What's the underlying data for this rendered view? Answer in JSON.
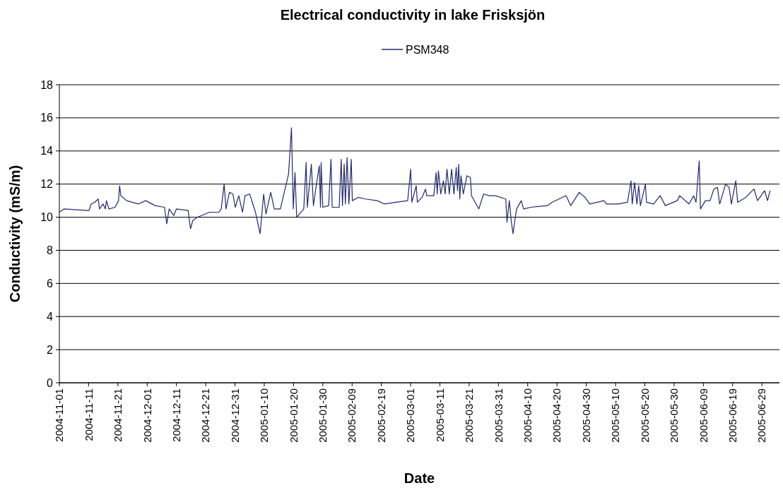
{
  "chart_data": {
    "type": "line",
    "title": "Electrical conductivity in lake Frisksjön",
    "xlabel": "Date",
    "ylabel": "Conductivity (mS/m)",
    "legend": "top",
    "grid": "y",
    "line_style": "solid",
    "marker": "none",
    "xlim": [
      "2004-11-01",
      "2005-07-05"
    ],
    "xticks": [
      "2004-11-01",
      "2004-11-11",
      "2004-11-21",
      "2004-12-01",
      "2004-12-11",
      "2004-12-21",
      "2004-12-31",
      "2005-01-10",
      "2005-01-20",
      "2005-01-30",
      "2005-02-09",
      "2005-02-19",
      "2005-03-01",
      "2005-03-11",
      "2005-03-21",
      "2005-03-31",
      "2005-04-10",
      "2005-04-20",
      "2005-04-30",
      "2005-05-10",
      "2005-05-20",
      "2005-05-30",
      "2005-06-09",
      "2005-06-19",
      "2005-06-29"
    ],
    "ylim": [
      0,
      18
    ],
    "yticks": [
      0,
      2,
      4,
      6,
      8,
      10,
      12,
      14,
      16,
      18
    ],
    "x": [
      "2004-11-01",
      "2004-11-02T14:00",
      "2004-11-11T02:00",
      "2004-11-11T22:00",
      "2004-11-13T02:00",
      "2004-11-14T07:00",
      "2004-11-14T17:00",
      "2004-11-15T22:00",
      "2004-11-16T17:00",
      "2004-11-17T02:00",
      "2004-11-17T22:00",
      "2004-11-20",
      "2004-11-21T05:00",
      "2004-11-21T14:00",
      "2004-11-22",
      "2004-11-24",
      "2004-11-28",
      "2004-11-30T12:00",
      "2004-12-03T17:00",
      "2004-12-06T22:00",
      "2004-12-07T17:00",
      "2004-12-08T12:00",
      "2004-12-10T02:00",
      "2004-12-11",
      "2004-12-15",
      "2004-12-15T19:00",
      "2004-12-16T14:00",
      "2004-12-18T05:00",
      "2004-12-22T07:00",
      "2004-12-25T12:00",
      "2004-12-26T07:00",
      "2004-12-27T07:00",
      "2004-12-27T22:00",
      "2004-12-29T02:00",
      "2004-12-30T07:00",
      "2004-12-31T02:00",
      "2005-01-01T07:00",
      "2005-01-02T14:00",
      "2005-01-03T10:00",
      "2005-01-05",
      "2005-01-07",
      "2005-01-08T14:00",
      "2005-01-09T19:00",
      "2005-01-10T14:00",
      "2005-01-12T05:00",
      "2005-01-13T10:00",
      "2005-01-15T12:00",
      "2005-01-18T07:00",
      "2005-01-19T07:00",
      "2005-01-19T22:00",
      "2005-01-20T12:00",
      "2005-01-21T02:00",
      "2005-01-23T12:00",
      "2005-01-24T07:00",
      "2005-01-24T17:00",
      "2005-01-26T02:00",
      "2005-01-26T19:00",
      "2005-01-28",
      "2005-01-28T19:00",
      "2005-01-29T05:00",
      "2005-01-29T10:00",
      "2005-01-30",
      "2005-02-01",
      "2005-02-01T19:00",
      "2005-02-02T05:00",
      "2005-02-04T14:00",
      "2005-02-05T07:00",
      "2005-02-05T17:00",
      "2005-02-06T07:00",
      "2005-02-06T17:00",
      "2005-02-07T07:00",
      "2005-02-07T22:00",
      "2005-02-08T17:00",
      "2005-02-09T02:00",
      "2005-02-11T02:00",
      "2005-02-13T12:00",
      "2005-02-17T14:00",
      "2005-02-20",
      "2005-02-24",
      "2005-02-28",
      "2005-03-01",
      "2005-03-01T10:00",
      "2005-03-02T22:00",
      "2005-03-03T07:00",
      "2005-03-04T22:00",
      "2005-03-06T02:00",
      "2005-03-06T12:00",
      "2005-03-08T22:00",
      "2005-03-09T17:00",
      "2005-03-10T02:00",
      "2005-03-10T12:00",
      "2005-03-11T07:00",
      "2005-03-12T05:00",
      "2005-03-12T19:00",
      "2005-03-13T10:00",
      "2005-03-14T05:00",
      "2005-03-15",
      "2005-03-15T19:00",
      "2005-03-16T14:00",
      "2005-03-17",
      "2005-03-17T10:00",
      "2005-03-17T19:00",
      "2005-03-18T05:00",
      "2005-03-19",
      "2005-03-20T05:00",
      "2005-03-21T10:00",
      "2005-03-21T19:00",
      "2005-03-24T07:00",
      "2005-03-25T22:00",
      "2005-03-27T22:00",
      "2005-03-29T22:00",
      "2005-04-02T12:00",
      "2005-04-02T22:00",
      "2005-04-03T17:00",
      "2005-04-04T10:00",
      "2005-04-05",
      "2005-04-05T14:00",
      "2005-04-06T05:00",
      "2005-04-07T19:00",
      "2005-04-08T14:00",
      "2005-04-11",
      "2005-04-16T17:00",
      "2005-04-18T07:00",
      "2005-04-23T02:00",
      "2005-04-24T17:00",
      "2005-04-27T14:00",
      "2005-04-29T14:00",
      "2005-05-01T05:00",
      "2005-05-06",
      "2005-05-06T22:00",
      "2005-05-10T22:00",
      "2005-05-14T02:00",
      "2005-05-15T07:00",
      "2005-05-15T17:00",
      "2005-05-16T12:00",
      "2005-05-17T07:00",
      "2005-05-17T22:00",
      "2005-05-18T12:00",
      "2005-05-20T05:00",
      "2005-05-20T14:00",
      "2005-05-23",
      "2005-05-25T05:00",
      "2005-05-27",
      "2005-05-31T02:00",
      "2005-05-31T22:00",
      "2005-06-04T02:00",
      "2005-06-05T17:00",
      "2005-06-06T12:00",
      "2005-06-07T14:00",
      "2005-06-08",
      "2005-06-09T17:00",
      "2005-06-11T07:00",
      "2005-06-12T14:00",
      "2005-06-13T19:00",
      "2005-06-14T14:00",
      "2005-06-16T14:00",
      "2005-06-17T19:00",
      "2005-06-18T14:00",
      "2005-06-20T02:00",
      "2005-06-20T17:00",
      "2005-06-23T12:00",
      "2005-06-26T07:00",
      "2005-06-27T12:00",
      "2005-06-29T22:00",
      "2005-06-30T22:00",
      "2005-07-01T19:00"
    ],
    "series": [
      {
        "name": "PSM348",
        "color": "#222a6e",
        "values": [
          10.3,
          10.5,
          10.4,
          10.8,
          10.9,
          11.1,
          10.5,
          10.8,
          10.5,
          11.0,
          10.5,
          10.6,
          11.0,
          11.9,
          11.3,
          11.0,
          10.8,
          11.0,
          10.7,
          10.6,
          9.6,
          10.5,
          10.1,
          10.5,
          10.4,
          9.3,
          9.8,
          10.0,
          10.3,
          10.3,
          10.5,
          12.0,
          10.5,
          11.5,
          11.4,
          10.6,
          11.3,
          10.3,
          11.3,
          11.4,
          10.3,
          9.0,
          11.4,
          10.2,
          11.5,
          10.5,
          10.5,
          12.6,
          15.4,
          10.5,
          12.7,
          10.0,
          10.5,
          13.3,
          10.6,
          13.2,
          10.7,
          12.2,
          13.1,
          10.6,
          13.3,
          10.6,
          10.7,
          13.5,
          10.6,
          10.6,
          13.5,
          10.7,
          13.2,
          10.8,
          13.6,
          10.8,
          13.5,
          11.0,
          11.2,
          11.1,
          11.0,
          10.8,
          10.9,
          11.0,
          12.9,
          10.9,
          11.9,
          10.9,
          11.2,
          11.7,
          11.3,
          11.3,
          12.7,
          11.4,
          12.8,
          11.4,
          12.2,
          11.4,
          12.9,
          11.4,
          12.9,
          11.4,
          13.0,
          11.6,
          13.2,
          11.1,
          12.5,
          11.4,
          12.5,
          12.4,
          11.3,
          10.5,
          11.4,
          11.3,
          11.3,
          11.1,
          9.7,
          11.0,
          9.7,
          9.0,
          9.8,
          10.5,
          11.0,
          10.5,
          10.6,
          10.7,
          10.9,
          11.3,
          10.7,
          11.5,
          11.2,
          10.8,
          11.0,
          10.8,
          10.8,
          10.9,
          12.2,
          10.8,
          12.1,
          10.8,
          11.9,
          10.7,
          12.0,
          10.9,
          10.8,
          11.3,
          10.7,
          11.0,
          11.3,
          10.8,
          11.3,
          10.9,
          13.4,
          10.5,
          11.0,
          11.0,
          11.7,
          11.8,
          10.8,
          12.0,
          11.8,
          10.8,
          12.2,
          10.9,
          11.2,
          11.7,
          11.0,
          11.6,
          11.0,
          11.6
        ]
      }
    ]
  }
}
